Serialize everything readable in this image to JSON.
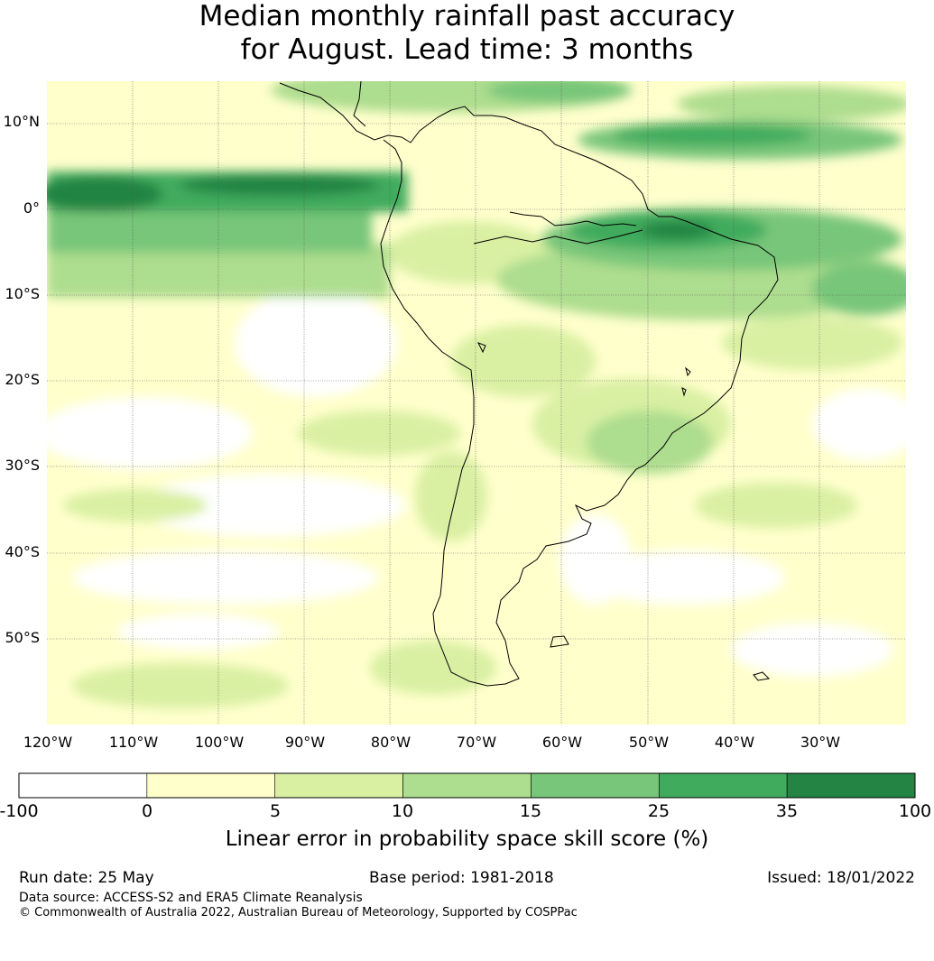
{
  "title": {
    "line1": "Median monthly rainfall past accuracy",
    "line2": "for August. Lead time: 3 months"
  },
  "map": {
    "lat_labels": [
      "10°N",
      "0°",
      "10°S",
      "20°S",
      "30°S",
      "40°S",
      "50°S"
    ],
    "lon_labels": [
      "120°W",
      "110°W",
      "100°W",
      "90°W",
      "80°W",
      "70°W",
      "60°W",
      "50°W",
      "40°W",
      "30°W"
    ],
    "gridlines": true
  },
  "colorbar": {
    "ticks": [
      "-100",
      "0",
      "5",
      "10",
      "15",
      "25",
      "35",
      "100"
    ],
    "colors": [
      "#ffffff",
      "#ffffcc",
      "#d9f0a3",
      "#addd8e",
      "#78c679",
      "#41ab5d",
      "#238443"
    ],
    "label": "Linear error in probability space skill score (%)"
  },
  "footer": {
    "run_date": "Run date: 25 May",
    "base_period": "Base period: 1981-2018",
    "issued": "Issued: 18/01/2022",
    "data_source": "Data source: ACCESS-S2 and ERA5 Climate Reanalysis",
    "copyright": "© Commonwealth of Australia 2022, Australian Bureau of Meteorology, Supported by COSPPac"
  }
}
